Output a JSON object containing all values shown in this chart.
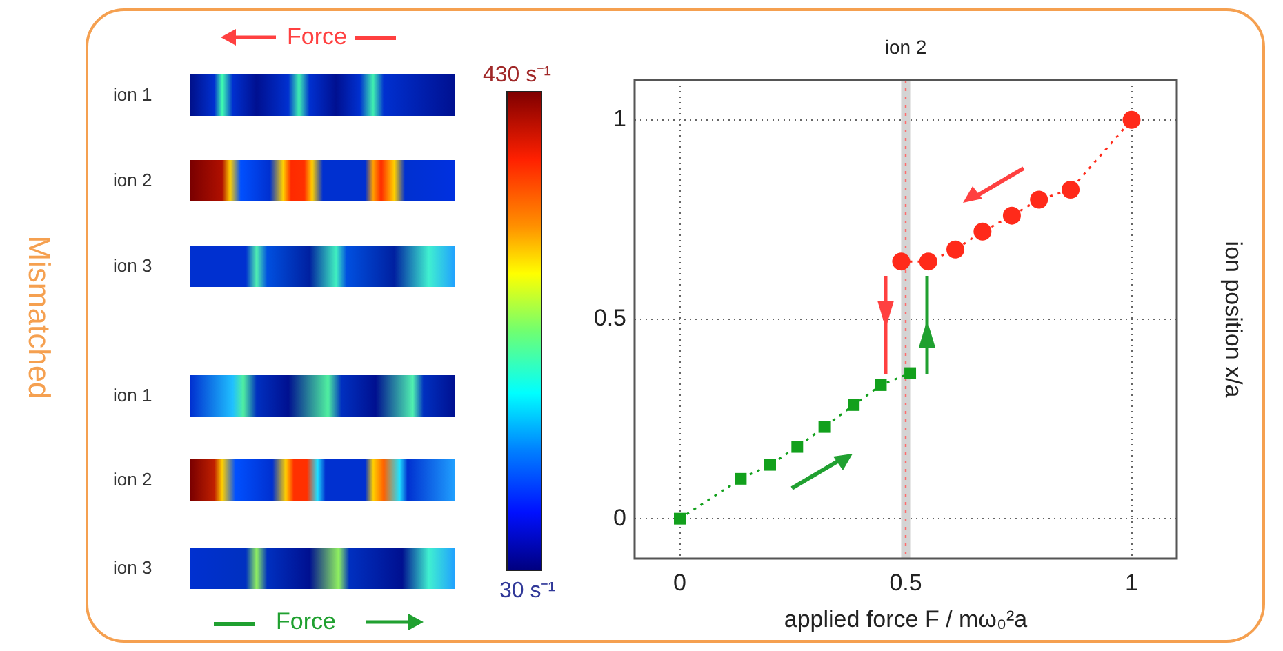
{
  "chart_data": [
    {
      "type": "other",
      "annotations": [
        "Mismatched",
        "Force",
        "Force",
        "ion 1",
        "ion 2",
        "ion 3",
        "ion 1",
        "ion 2",
        "ion 3",
        "430 s⁻¹",
        "30 s⁻¹"
      ]
    },
    {
      "type": "line",
      "title": "ion 2",
      "xlabel": "applied force F / mω₀²a",
      "ylabel": "ion position x/a",
      "xlim": [
        -0.1,
        1.1
      ],
      "xticks": [
        0,
        0.5,
        1
      ],
      "ylim": [
        -0.1,
        1.1
      ],
      "yticks": [
        0,
        0.5,
        1
      ],
      "grid": true,
      "line_style": "dotted",
      "ref_lines": [
        {
          "axis": "x",
          "value": 0.5,
          "color": "#ff6b6b",
          "line_style": "dotted"
        }
      ],
      "bands": [
        {
          "axis": "x",
          "from": 0.49,
          "to": 0.51,
          "color": "#d4d4d4"
        }
      ],
      "series": [
        {
          "color": "#12a01c",
          "marker": "square",
          "x": [
            0,
            0.135,
            0.2,
            0.26,
            0.32,
            0.385,
            0.445,
            0.51
          ],
          "values": [
            0,
            0.1,
            0.135,
            0.18,
            0.23,
            0.285,
            0.335,
            0.365
          ]
        },
        {
          "color": "#ff2a1a",
          "marker": "circle",
          "x": [
            0.49,
            0.55,
            0.61,
            0.67,
            0.735,
            0.795,
            0.865,
            1
          ],
          "values": [
            0.645,
            0.645,
            0.675,
            0.72,
            0.76,
            0.8,
            0.825,
            1
          ]
        }
      ]
    }
  ]
}
